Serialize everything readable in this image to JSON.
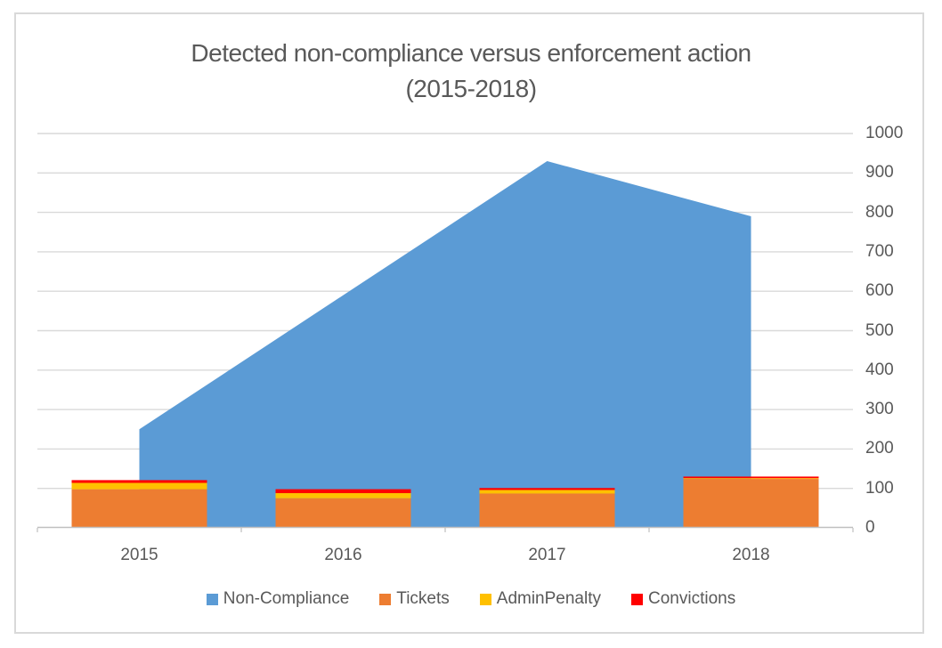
{
  "frame": {
    "border_color": "#d9d9d9",
    "background": "#ffffff"
  },
  "chart_data": {
    "type": "combo",
    "title": "Detected non-compliance versus enforcement action (2015-2018)",
    "title_lines": [
      "Detected non-compliance versus enforcement action",
      "(2015-2018)"
    ],
    "categories": [
      "2015",
      "2016",
      "2017",
      "2018"
    ],
    "series": [
      {
        "name": "Non-Compliance",
        "render": "area",
        "color": "#5B9BD5",
        "values": [
          250,
          590,
          930,
          790
        ]
      },
      {
        "name": "Tickets",
        "render": "stacked-bar",
        "color": "#ED7D31",
        "values": [
          98,
          75,
          87,
          124
        ]
      },
      {
        "name": "AdminPenalty",
        "render": "stacked-bar",
        "color": "#FFC000",
        "values": [
          16,
          13,
          9,
          2
        ]
      },
      {
        "name": "Convictions",
        "render": "stacked-bar",
        "color": "#FF0000",
        "values": [
          7,
          10,
          5,
          4
        ]
      }
    ],
    "ylim": [
      0,
      1000
    ],
    "ytick_step": 100,
    "ytick_labels": [
      "0",
      "100",
      "200",
      "300",
      "400",
      "500",
      "600",
      "700",
      "800",
      "900",
      "1000"
    ],
    "y_axis_side": "right",
    "grid": true,
    "grid_color": "#d9d9d9",
    "axis_line_color": "#bfbfbf",
    "axis_label_color": "#595959",
    "title_color": "#595959",
    "legend_position": "bottom"
  }
}
